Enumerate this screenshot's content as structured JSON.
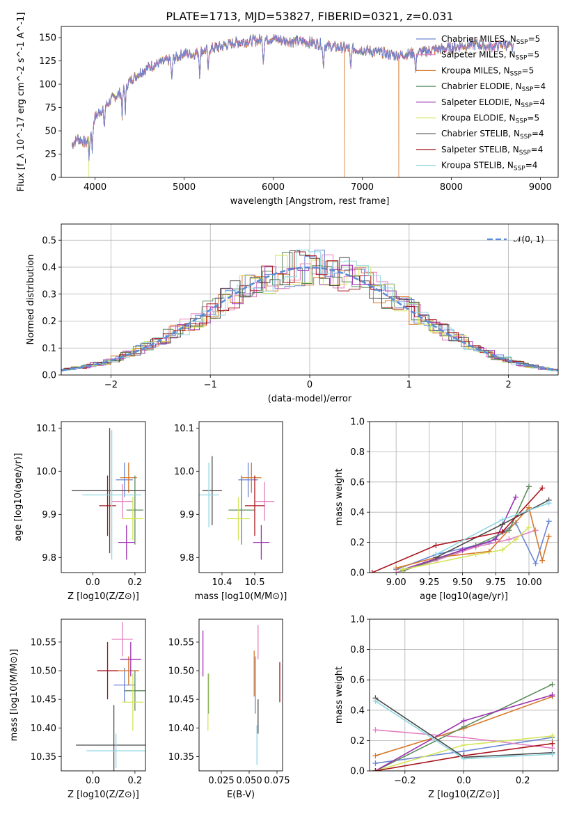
{
  "figure": {
    "title": "PLATE=1713, MJD=53827, FIBERID=0321, z=0.031"
  },
  "colors": {
    "Chabrier MILES": "#6a86d4",
    "Salpeter MILES": "#e27fbf",
    "Kroupa MILES": "#d6782a",
    "Chabrier ELODIE": "#5c8c5e",
    "Salpeter ELODIE": "#9b30b0",
    "Kroupa ELODIE": "#d4e45a",
    "Chabrier STELIB": "#4a4a4a",
    "Salpeter STELIB": "#a8141c",
    "Kroupa STELIB": "#8fd6e2"
  },
  "chart_data": [
    {
      "type": "line",
      "id": "spectrum",
      "title": "PLATE=1713, MJD=53827, FIBERID=0321, z=0.031",
      "xlabel": "wavelength [Angstrom, rest frame]",
      "ylabel": "Flux [f_λ 10^-17 erg cm^-2 s^-1 A^-1]",
      "xlim": [
        3620,
        9200
      ],
      "ylim": [
        0,
        162
      ],
      "xticks": [
        4000,
        5000,
        6000,
        7000,
        8000,
        9000
      ],
      "yticks": [
        0,
        25,
        50,
        75,
        100,
        125,
        150
      ],
      "legend_position": "right",
      "legend": [
        "Chabrier MILES, N_SSP=5",
        "Salpeter MILES, N_SSP=5",
        "Kroupa MILES, N_SSP=5",
        "Chabrier ELODIE, N_SSP=4",
        "Salpeter ELODIE, N_SSP=4",
        "Kroupa ELODIE, N_SSP=5",
        "Chabrier STELIB, N_SSP=4",
        "Salpeter STELIB, N_SSP=4",
        "Kroupa STELIB, N_SSP=4"
      ],
      "continuum": {
        "x": [
          3740,
          3800,
          3900,
          3950,
          4000,
          4100,
          4200,
          4300,
          4400,
          4500,
          4600,
          4700,
          4800,
          4900,
          5000,
          5100,
          5200,
          5300,
          5400,
          5500,
          5600,
          5700,
          5800,
          5900,
          6000,
          6100,
          6200,
          6300,
          6400,
          6500,
          6600,
          6700,
          6800,
          6900,
          7000,
          7100,
          7200,
          7300,
          7400,
          7500,
          7600,
          7700,
          7800,
          7900,
          8000,
          8100,
          8200,
          8300,
          8400,
          8500,
          8600,
          8700
        ],
        "y": [
          35,
          42,
          37,
          48,
          65,
          75,
          85,
          92,
          105,
          112,
          118,
          122,
          125,
          128,
          133,
          132,
          136,
          138,
          140,
          143,
          145,
          146,
          147,
          148,
          149,
          147,
          146,
          146,
          145,
          144,
          141,
          140,
          139,
          138,
          137,
          135,
          134,
          132,
          131,
          132,
          134,
          135,
          137,
          138,
          139,
          141,
          142,
          143,
          140,
          141,
          143,
          138
        ]
      },
      "spikes": [
        {
          "x": 3930,
          "series": "Kroupa ELODIE"
        },
        {
          "x": 6800,
          "series": "Kroupa MILES"
        },
        {
          "x": 7410,
          "series": "Kroupa MILES"
        }
      ]
    },
    {
      "type": "area",
      "id": "residuals",
      "xlabel": "(data-model)/error",
      "ylabel": "Normed distribution",
      "xlim": [
        -2.5,
        2.5
      ],
      "ylim": [
        0,
        0.56
      ],
      "xticks": [
        -2,
        -1,
        0,
        1,
        2
      ],
      "yticks": [
        0.0,
        0.1,
        0.2,
        0.3,
        0.4,
        0.5
      ],
      "legend": [
        "𝒩(0, 1)"
      ],
      "legend_position": "top-right",
      "grid": true,
      "normal_curve": {
        "mean": 0,
        "sigma": 1
      }
    },
    {
      "type": "scatter",
      "id": "age-vs-Z",
      "xlabel": "Z [log10(Z/Z⊙)]",
      "ylabel": "age  [log10(age/yr)]",
      "xlim": [
        -0.15,
        0.25
      ],
      "ylim": [
        9.765,
        10.115
      ],
      "xticks": [
        0.0,
        0.2
      ],
      "yticks": [
        9.8,
        9.9,
        10.0,
        10.1
      ],
      "points": [
        {
          "series": "Chabrier MILES",
          "x": 0.15,
          "y": 9.98,
          "xerr": 0.04,
          "yerr": 0.04
        },
        {
          "series": "Salpeter MILES",
          "x": 0.14,
          "y": 9.93,
          "xerr": 0.05,
          "yerr": 0.04
        },
        {
          "series": "Kroupa MILES",
          "x": 0.17,
          "y": 9.985,
          "xerr": 0.04,
          "yerr": 0.035
        },
        {
          "series": "Chabrier ELODIE",
          "x": 0.2,
          "y": 9.91,
          "xerr": 0.04,
          "yerr": 0.08
        },
        {
          "series": "Salpeter ELODIE",
          "x": 0.16,
          "y": 9.835,
          "xerr": 0.04,
          "yerr": 0.04
        },
        {
          "series": "Kroupa ELODIE",
          "x": 0.19,
          "y": 9.89,
          "xerr": 0.05,
          "yerr": 0.05
        },
        {
          "series": "Chabrier STELIB",
          "x": 0.08,
          "y": 9.955,
          "xerr": 0.18,
          "yerr": 0.145
        },
        {
          "series": "Salpeter STELIB",
          "x": 0.07,
          "y": 9.92,
          "xerr": 0.04,
          "yerr": 0.07
        },
        {
          "series": "Kroupa STELIB",
          "x": 0.09,
          "y": 9.945,
          "xerr": 0.14,
          "yerr": 0.15
        }
      ]
    },
    {
      "type": "scatter",
      "id": "age-vs-mass",
      "xlabel": "mass [log10(M/M⊙)]",
      "ylabel": "",
      "xlim": [
        10.33,
        10.585
      ],
      "ylim": [
        9.765,
        10.115
      ],
      "xticks": [
        10.4,
        10.5
      ],
      "yticks": [
        9.8,
        9.9,
        10.0,
        10.1
      ],
      "points": [
        {
          "series": "Chabrier MILES",
          "x": 10.48,
          "y": 9.98,
          "xerr": 0.03,
          "yerr": 0.04
        },
        {
          "series": "Salpeter MILES",
          "x": 10.53,
          "y": 9.93,
          "xerr": 0.03,
          "yerr": 0.045
        },
        {
          "series": "Kroupa MILES",
          "x": 10.49,
          "y": 9.985,
          "xerr": 0.03,
          "yerr": 0.035
        },
        {
          "series": "Chabrier ELODIE",
          "x": 10.46,
          "y": 9.91,
          "xerr": 0.04,
          "yerr": 0.08
        },
        {
          "series": "Salpeter ELODIE",
          "x": 10.52,
          "y": 9.835,
          "xerr": 0.025,
          "yerr": 0.04
        },
        {
          "series": "Kroupa ELODIE",
          "x": 10.45,
          "y": 9.89,
          "xerr": 0.035,
          "yerr": 0.05
        },
        {
          "series": "Chabrier STELIB",
          "x": 10.37,
          "y": 9.955,
          "xerr": 0.03,
          "yerr": 0.08
        },
        {
          "series": "Salpeter STELIB",
          "x": 10.5,
          "y": 9.92,
          "xerr": 0.03,
          "yerr": 0.07
        },
        {
          "series": "Kroupa STELIB",
          "x": 10.36,
          "y": 9.945,
          "xerr": 0.03,
          "yerr": 0.075
        }
      ]
    },
    {
      "type": "line",
      "id": "massweight-vs-age",
      "xlabel": "age  [log10(age/yr)]",
      "ylabel": "mass weight",
      "xlim": [
        8.8,
        10.22
      ],
      "ylim": [
        0,
        1.0
      ],
      "xticks": [
        9.0,
        9.25,
        9.5,
        9.75,
        10.0
      ],
      "yticks": [
        0.0,
        0.2,
        0.4,
        0.6,
        0.8,
        1.0
      ],
      "grid": true,
      "series": [
        {
          "name": "Chabrier MILES",
          "x": [
            9.0,
            9.3,
            9.7,
            9.9,
            10.05,
            10.15
          ],
          "y": [
            0.02,
            0.12,
            0.2,
            0.33,
            0.06,
            0.34
          ]
        },
        {
          "name": "Salpeter MILES",
          "x": [
            9.0,
            9.3,
            9.6,
            9.85,
            10.05
          ],
          "y": [
            0.0,
            0.08,
            0.17,
            0.22,
            0.28
          ]
        },
        {
          "name": "Kroupa MILES",
          "x": [
            9.0,
            9.3,
            9.7,
            10.0,
            10.1,
            10.15
          ],
          "y": [
            0.03,
            0.1,
            0.14,
            0.43,
            0.08,
            0.24
          ]
        },
        {
          "name": "Chabrier ELODIE",
          "x": [
            9.05,
            9.6,
            9.85,
            10.0
          ],
          "y": [
            0.01,
            0.18,
            0.28,
            0.57
          ]
        },
        {
          "name": "Salpeter ELODIE",
          "x": [
            9.05,
            9.5,
            9.75,
            9.9
          ],
          "y": [
            0.02,
            0.15,
            0.22,
            0.5
          ]
        },
        {
          "name": "Kroupa ELODIE",
          "x": [
            9.05,
            9.6,
            9.8,
            9.9,
            10.0
          ],
          "y": [
            0.02,
            0.12,
            0.15,
            0.22,
            0.3
          ]
        },
        {
          "name": "Chabrier STELIB",
          "x": [
            9.3,
            9.8,
            10.15
          ],
          "y": [
            0.1,
            0.32,
            0.48
          ]
        },
        {
          "name": "Salpeter STELIB",
          "x": [
            8.82,
            9.3,
            9.8,
            10.1
          ],
          "y": [
            0.0,
            0.18,
            0.27,
            0.56
          ]
        },
        {
          "name": "Kroupa STELIB",
          "x": [
            9.3,
            9.8,
            10.15
          ],
          "y": [
            0.12,
            0.35,
            0.46
          ]
        }
      ]
    },
    {
      "type": "scatter",
      "id": "mass-vs-Z",
      "xlabel": "Z [log10(Z/Z⊙)]",
      "ylabel": "mass [log10(M/M⊙)]",
      "xlim": [
        -0.15,
        0.25
      ],
      "ylim": [
        10.325,
        10.59
      ],
      "xticks": [
        0.0,
        0.2
      ],
      "yticks": [
        10.35,
        10.4,
        10.45,
        10.5,
        10.55
      ],
      "points": [
        {
          "series": "Chabrier MILES",
          "x": 0.15,
          "y": 10.475,
          "xerr": 0.05,
          "yerr": 0.03
        },
        {
          "series": "Salpeter MILES",
          "x": 0.14,
          "y": 10.555,
          "xerr": 0.05,
          "yerr": 0.03
        },
        {
          "series": "Kroupa MILES",
          "x": 0.17,
          "y": 10.5,
          "xerr": 0.05,
          "yerr": 0.025
        },
        {
          "series": "Chabrier ELODIE",
          "x": 0.2,
          "y": 10.465,
          "xerr": 0.05,
          "yerr": 0.035
        },
        {
          "series": "Salpeter ELODIE",
          "x": 0.18,
          "y": 10.52,
          "xerr": 0.05,
          "yerr": 0.03
        },
        {
          "series": "Kroupa ELODIE",
          "x": 0.19,
          "y": 10.445,
          "xerr": 0.05,
          "yerr": 0.05
        },
        {
          "series": "Chabrier STELIB",
          "x": 0.1,
          "y": 10.37,
          "xerr": 0.18,
          "yerr": 0.07
        },
        {
          "series": "Salpeter STELIB",
          "x": 0.07,
          "y": 10.5,
          "xerr": 0.05,
          "yerr": 0.05
        },
        {
          "series": "Kroupa STELIB",
          "x": 0.11,
          "y": 10.36,
          "xerr": 0.14,
          "yerr": 0.03
        }
      ]
    },
    {
      "type": "scatter",
      "id": "mass-vs-ebv",
      "xlabel": "E(B-V)",
      "ylabel": "",
      "xlim": [
        0.005,
        0.08
      ],
      "ylim": [
        10.325,
        10.59
      ],
      "xticks": [
        0.025,
        0.05,
        0.075
      ],
      "tick_labels": [
        "0.025",
        "0.050",
        "0.075"
      ],
      "yticks": [
        10.35,
        10.4,
        10.45,
        10.5,
        10.55
      ],
      "points": [
        {
          "series": "Chabrier MILES",
          "x": 0.0555,
          "y": 10.475,
          "yerr": 0.05
        },
        {
          "series": "Salpeter MILES",
          "x": 0.058,
          "y": 10.55,
          "yerr": 0.03
        },
        {
          "series": "Kroupa MILES",
          "x": 0.0545,
          "y": 10.495,
          "yerr": 0.04
        },
        {
          "series": "Chabrier ELODIE",
          "x": 0.0135,
          "y": 10.46,
          "yerr": 0.035
        },
        {
          "series": "Salpeter ELODIE",
          "x": 0.0085,
          "y": 10.53,
          "yerr": 0.04
        },
        {
          "series": "Kroupa ELODIE",
          "x": 0.013,
          "y": 10.445,
          "yerr": 0.05
        },
        {
          "series": "Chabrier STELIB",
          "x": 0.058,
          "y": 10.42,
          "yerr": 0.03
        },
        {
          "series": "Salpeter STELIB",
          "x": 0.0775,
          "y": 10.48,
          "yerr": 0.035
        },
        {
          "series": "Kroupa STELIB",
          "x": 0.057,
          "y": 10.37,
          "yerr": 0.035
        }
      ]
    },
    {
      "type": "line",
      "id": "massweight-vs-Z",
      "xlabel": "Z [log10(Z/Z⊙)]",
      "ylabel": "mass weight",
      "xlim": [
        -0.32,
        0.32
      ],
      "ylim": [
        0,
        1.0
      ],
      "xticks": [
        -0.2,
        0.0,
        0.2
      ],
      "yticks": [
        0.0,
        0.2,
        0.4,
        0.6,
        0.8,
        1.0
      ],
      "grid": true,
      "series": [
        {
          "name": "Chabrier MILES",
          "x": [
            -0.3,
            0.0,
            0.3
          ],
          "y": [
            0.05,
            0.13,
            0.22
          ]
        },
        {
          "name": "Salpeter MILES",
          "x": [
            -0.3,
            0.0,
            0.3
          ],
          "y": [
            0.27,
            0.22,
            0.15
          ]
        },
        {
          "name": "Kroupa MILES",
          "x": [
            -0.3,
            0.0,
            0.3
          ],
          "y": [
            0.1,
            0.28,
            0.49
          ]
        },
        {
          "name": "Chabrier ELODIE",
          "x": [
            -0.3,
            0.0,
            0.3
          ],
          "y": [
            0.0,
            0.29,
            0.57
          ]
        },
        {
          "name": "Salpeter ELODIE",
          "x": [
            -0.3,
            0.0,
            0.3
          ],
          "y": [
            0.0,
            0.33,
            0.5
          ]
        },
        {
          "name": "Kroupa ELODIE",
          "x": [
            -0.3,
            0.0,
            0.3
          ],
          "y": [
            0.0,
            0.17,
            0.23
          ]
        },
        {
          "name": "Chabrier STELIB",
          "x": [
            -0.3,
            0.0,
            0.3
          ],
          "y": [
            0.48,
            0.09,
            0.12
          ]
        },
        {
          "name": "Salpeter STELIB",
          "x": [
            -0.3,
            0.0,
            0.3
          ],
          "y": [
            0.0,
            0.1,
            0.18
          ]
        },
        {
          "name": "Kroupa STELIB",
          "x": [
            -0.3,
            0.0,
            0.3
          ],
          "y": [
            0.46,
            0.08,
            0.11
          ]
        }
      ]
    }
  ]
}
